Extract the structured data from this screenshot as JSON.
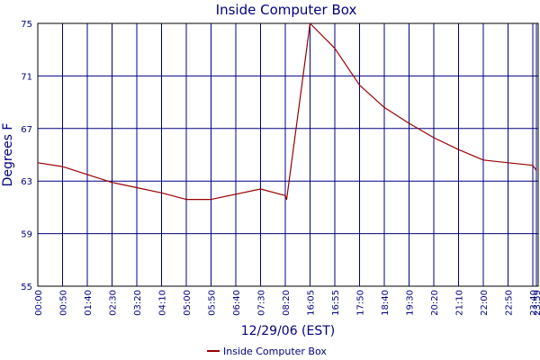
{
  "chart_data": {
    "type": "line",
    "title": "Inside Computer Box",
    "xlabel": "12/29/06 (EST)",
    "ylabel": "Degrees F",
    "ylim": [
      55,
      75
    ],
    "yticks": [
      55,
      59,
      63,
      67,
      71,
      75
    ],
    "x_start": "00:00",
    "x_end": "23:59",
    "xticks": [
      "00:00",
      "00:50",
      "01:40",
      "02:30",
      "03:20",
      "04:10",
      "05:00",
      "05:50",
      "06:40",
      "07:30",
      "08:20",
      "16:05",
      "16:55",
      "17:50",
      "18:40",
      "19:30",
      "20:20",
      "21:10",
      "22:00",
      "22:50",
      "23:40",
      "23:59"
    ],
    "grid": true,
    "legend_position": "bottom-center",
    "series": [
      {
        "name": "Inside Computer Box",
        "color": "#990000",
        "x": [
          "00:00",
          "00:50",
          "01:40",
          "02:30",
          "03:20",
          "04:10",
          "05:00",
          "05:50",
          "06:40",
          "07:30",
          "08:20",
          "08:45",
          "16:05",
          "16:55",
          "17:50",
          "18:40",
          "19:30",
          "20:20",
          "21:10",
          "22:00",
          "22:50",
          "23:40",
          "23:59"
        ],
        "values": [
          64.4,
          64.1,
          63.5,
          62.9,
          62.5,
          62.1,
          61.6,
          61.6,
          62.0,
          62.4,
          61.9,
          61.6,
          75.0,
          73.1,
          70.3,
          68.6,
          67.4,
          66.3,
          65.4,
          64.6,
          64.4,
          64.2,
          63.8
        ]
      }
    ]
  }
}
